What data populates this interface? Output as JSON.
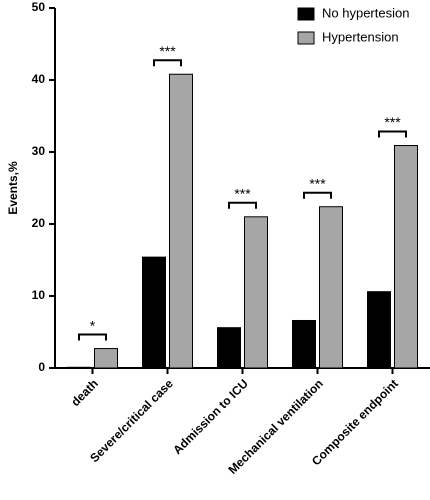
{
  "chart_data": {
    "type": "bar",
    "y_label": "Events,%",
    "categories": [
      "death",
      "Severe/critical case",
      "Admission to ICU",
      "Mechanical ventilation",
      "Composite endpoint"
    ],
    "series": [
      {
        "name": "No hypertesion",
        "color": "#000000",
        "values": [
          0.1,
          15.4,
          5.6,
          6.6,
          10.6
        ]
      },
      {
        "name": "Hypertension",
        "color": "#a6a6a6",
        "values": [
          2.7,
          40.8,
          21.0,
          22.4,
          30.9
        ]
      }
    ],
    "significance": [
      "*",
      "***",
      "***",
      "***",
      "***"
    ],
    "ylim": [
      0,
      50
    ],
    "yticks": [
      0,
      10,
      20,
      30,
      40,
      50
    ],
    "grid": false,
    "legend": "top-right"
  }
}
